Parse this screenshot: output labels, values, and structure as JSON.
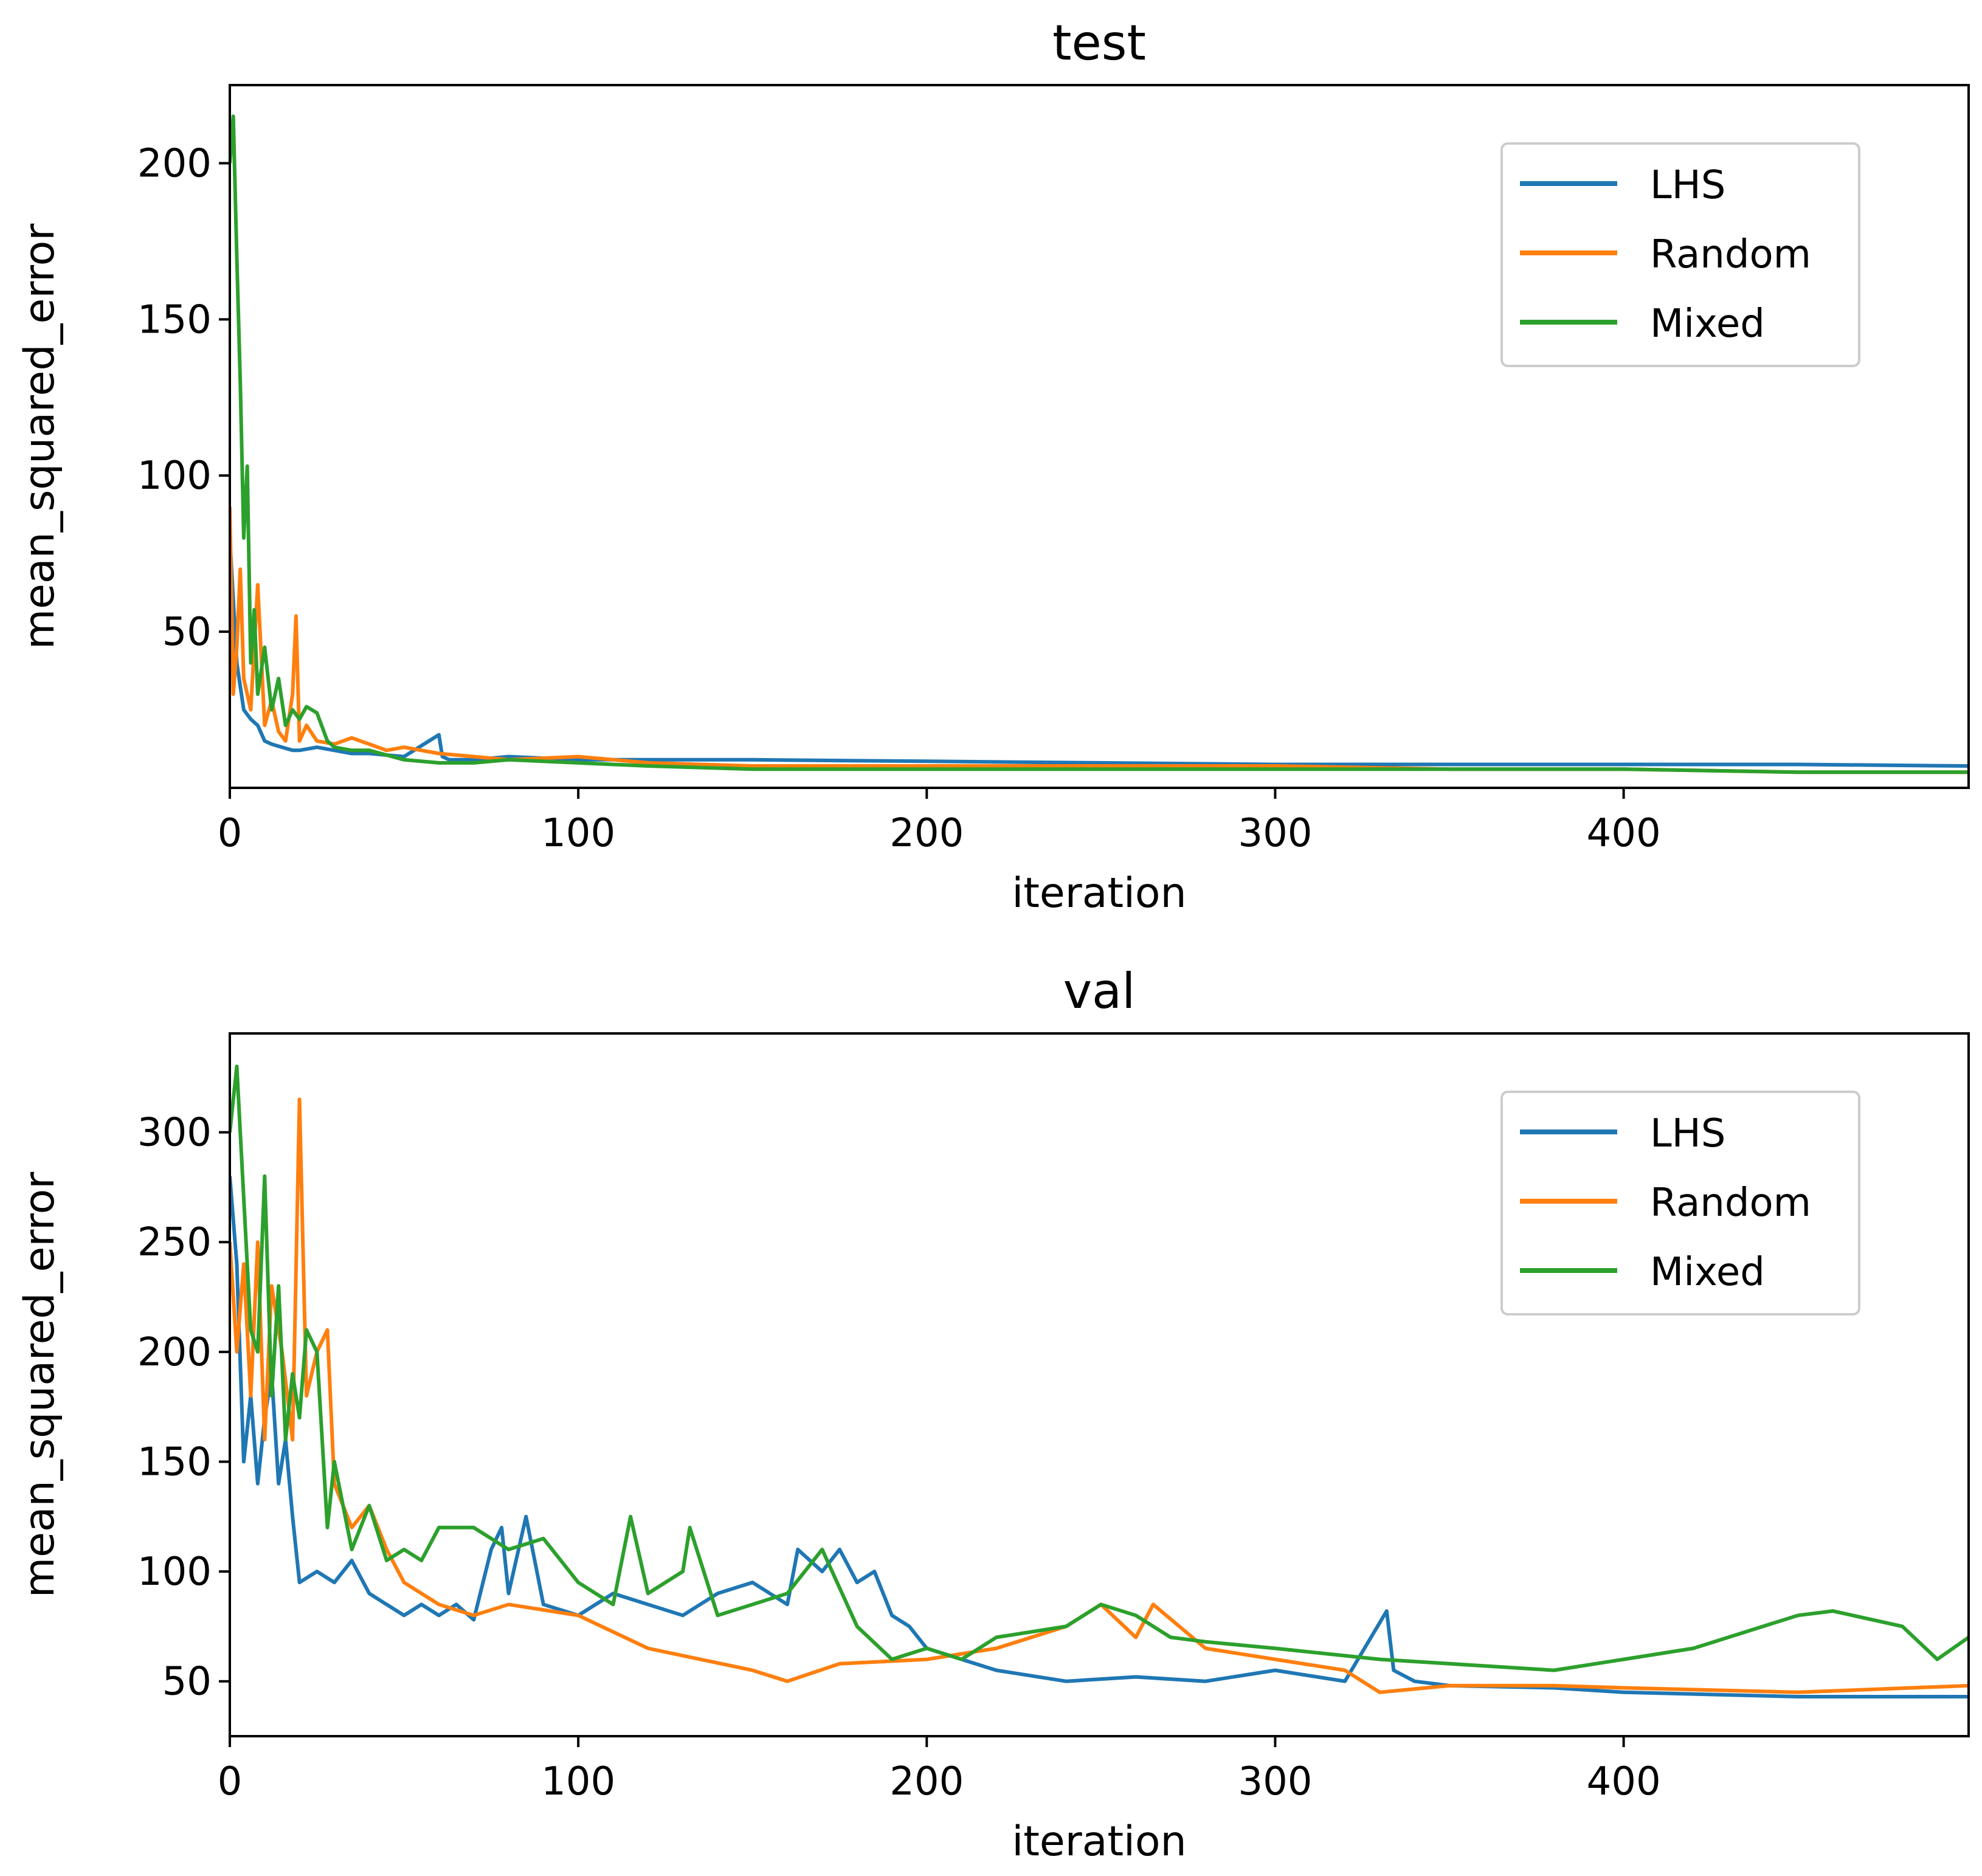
{
  "chart_data": [
    {
      "type": "line",
      "title": "test",
      "xlabel": "iteration",
      "ylabel": "mean_squared_error",
      "xlim": [
        0,
        499
      ],
      "ylim": [
        0,
        225
      ],
      "xticks": [
        0,
        100,
        200,
        300,
        400
      ],
      "yticks": [
        50,
        100,
        150,
        200
      ],
      "grid": false,
      "legend_position": "upper right",
      "series": [
        {
          "name": "LHS",
          "color": "#1f77b4",
          "x": [
            0,
            2,
            4,
            6,
            8,
            10,
            12,
            15,
            18,
            20,
            25,
            30,
            35,
            40,
            50,
            60,
            61,
            63,
            70,
            80,
            100,
            120,
            150,
            200,
            250,
            300,
            350,
            400,
            450,
            499
          ],
          "y": [
            80,
            40,
            25,
            22,
            20,
            15,
            14,
            13,
            12,
            12,
            13,
            12,
            11,
            11,
            10,
            17,
            10,
            9,
            9,
            10,
            9,
            9,
            9,
            8.5,
            8,
            7.5,
            7.5,
            7.5,
            7.5,
            7
          ]
        },
        {
          "name": "Random",
          "color": "#ff7f0e",
          "x": [
            0,
            1,
            2,
            3,
            4,
            6,
            8,
            10,
            12,
            14,
            16,
            18,
            19,
            20,
            22,
            25,
            30,
            35,
            40,
            45,
            50,
            60,
            70,
            80,
            100,
            120,
            150,
            200,
            250,
            300,
            350,
            400,
            450,
            499
          ],
          "y": [
            90,
            30,
            45,
            70,
            35,
            25,
            65,
            20,
            28,
            18,
            15,
            30,
            55,
            15,
            20,
            15,
            14,
            16,
            14,
            12,
            13,
            11,
            10,
            9,
            10,
            8,
            7,
            7,
            7,
            7,
            6,
            6,
            5,
            5
          ]
        },
        {
          "name": "Mixed",
          "color": "#2ca02c",
          "x": [
            0,
            1,
            2,
            3,
            4,
            5,
            6,
            7,
            8,
            10,
            12,
            14,
            16,
            18,
            20,
            22,
            25,
            28,
            30,
            35,
            40,
            50,
            60,
            70,
            80,
            100,
            120,
            150,
            200,
            250,
            300,
            350,
            400,
            450,
            499
          ],
          "y": [
            200,
            215,
            170,
            130,
            80,
            103,
            40,
            57,
            30,
            45,
            25,
            35,
            20,
            25,
            22,
            26,
            24,
            15,
            13,
            12,
            12,
            9,
            8,
            8,
            9,
            8,
            7,
            6,
            6,
            6,
            6,
            6,
            6,
            5,
            5
          ]
        }
      ]
    },
    {
      "type": "line",
      "title": "val",
      "xlabel": "iteration",
      "ylabel": "mean_squared_error",
      "xlim": [
        0,
        499
      ],
      "ylim": [
        25,
        345
      ],
      "xticks": [
        0,
        100,
        200,
        300,
        400
      ],
      "yticks": [
        50,
        100,
        150,
        200,
        250,
        300
      ],
      "grid": false,
      "legend_position": "upper right",
      "series": [
        {
          "name": "LHS",
          "color": "#1f77b4",
          "x": [
            0,
            2,
            4,
            6,
            8,
            10,
            12,
            14,
            16,
            18,
            20,
            25,
            30,
            35,
            40,
            45,
            50,
            55,
            60,
            65,
            70,
            75,
            78,
            80,
            85,
            90,
            100,
            110,
            120,
            130,
            140,
            150,
            160,
            163,
            170,
            175,
            180,
            185,
            190,
            195,
            200,
            210,
            220,
            240,
            260,
            280,
            300,
            320,
            332,
            334,
            340,
            350,
            380,
            400,
            450,
            499
          ],
          "y": [
            280,
            240,
            150,
            180,
            140,
            170,
            190,
            140,
            160,
            125,
            95,
            100,
            95,
            105,
            90,
            85,
            80,
            85,
            80,
            85,
            78,
            110,
            120,
            90,
            125,
            85,
            80,
            90,
            85,
            80,
            90,
            95,
            85,
            110,
            100,
            110,
            95,
            100,
            80,
            75,
            65,
            60,
            55,
            50,
            52,
            50,
            55,
            50,
            82,
            55,
            50,
            48,
            47,
            45,
            43,
            43
          ]
        },
        {
          "name": "Random",
          "color": "#ff7f0e",
          "x": [
            0,
            2,
            4,
            6,
            8,
            10,
            12,
            15,
            18,
            20,
            22,
            25,
            28,
            30,
            35,
            40,
            45,
            50,
            60,
            70,
            80,
            100,
            120,
            150,
            160,
            175,
            200,
            220,
            240,
            250,
            260,
            265,
            280,
            300,
            320,
            330,
            350,
            380,
            400,
            450,
            499
          ],
          "y": [
            250,
            200,
            240,
            180,
            250,
            160,
            230,
            200,
            160,
            315,
            180,
            200,
            210,
            140,
            120,
            130,
            110,
            95,
            85,
            80,
            85,
            80,
            65,
            55,
            50,
            58,
            60,
            65,
            75,
            85,
            70,
            85,
            65,
            60,
            55,
            45,
            48,
            48,
            47,
            45,
            48
          ]
        },
        {
          "name": "Mixed",
          "color": "#2ca02c",
          "x": [
            0,
            2,
            4,
            6,
            8,
            10,
            12,
            14,
            16,
            18,
            20,
            22,
            25,
            28,
            30,
            35,
            40,
            45,
            50,
            55,
            60,
            70,
            80,
            90,
            100,
            110,
            115,
            120,
            130,
            132,
            140,
            150,
            160,
            170,
            180,
            190,
            200,
            210,
            220,
            240,
            250,
            260,
            270,
            280,
            300,
            330,
            350,
            380,
            400,
            420,
            440,
            450,
            460,
            480,
            490,
            499
          ],
          "y": [
            300,
            330,
            270,
            210,
            200,
            280,
            180,
            230,
            160,
            190,
            170,
            210,
            200,
            120,
            150,
            110,
            130,
            105,
            110,
            105,
            120,
            120,
            110,
            115,
            95,
            85,
            125,
            90,
            100,
            120,
            80,
            85,
            90,
            110,
            75,
            60,
            65,
            60,
            70,
            75,
            85,
            80,
            70,
            68,
            65,
            60,
            58,
            55,
            60,
            65,
            75,
            80,
            82,
            75,
            60,
            70
          ]
        }
      ]
    }
  ]
}
